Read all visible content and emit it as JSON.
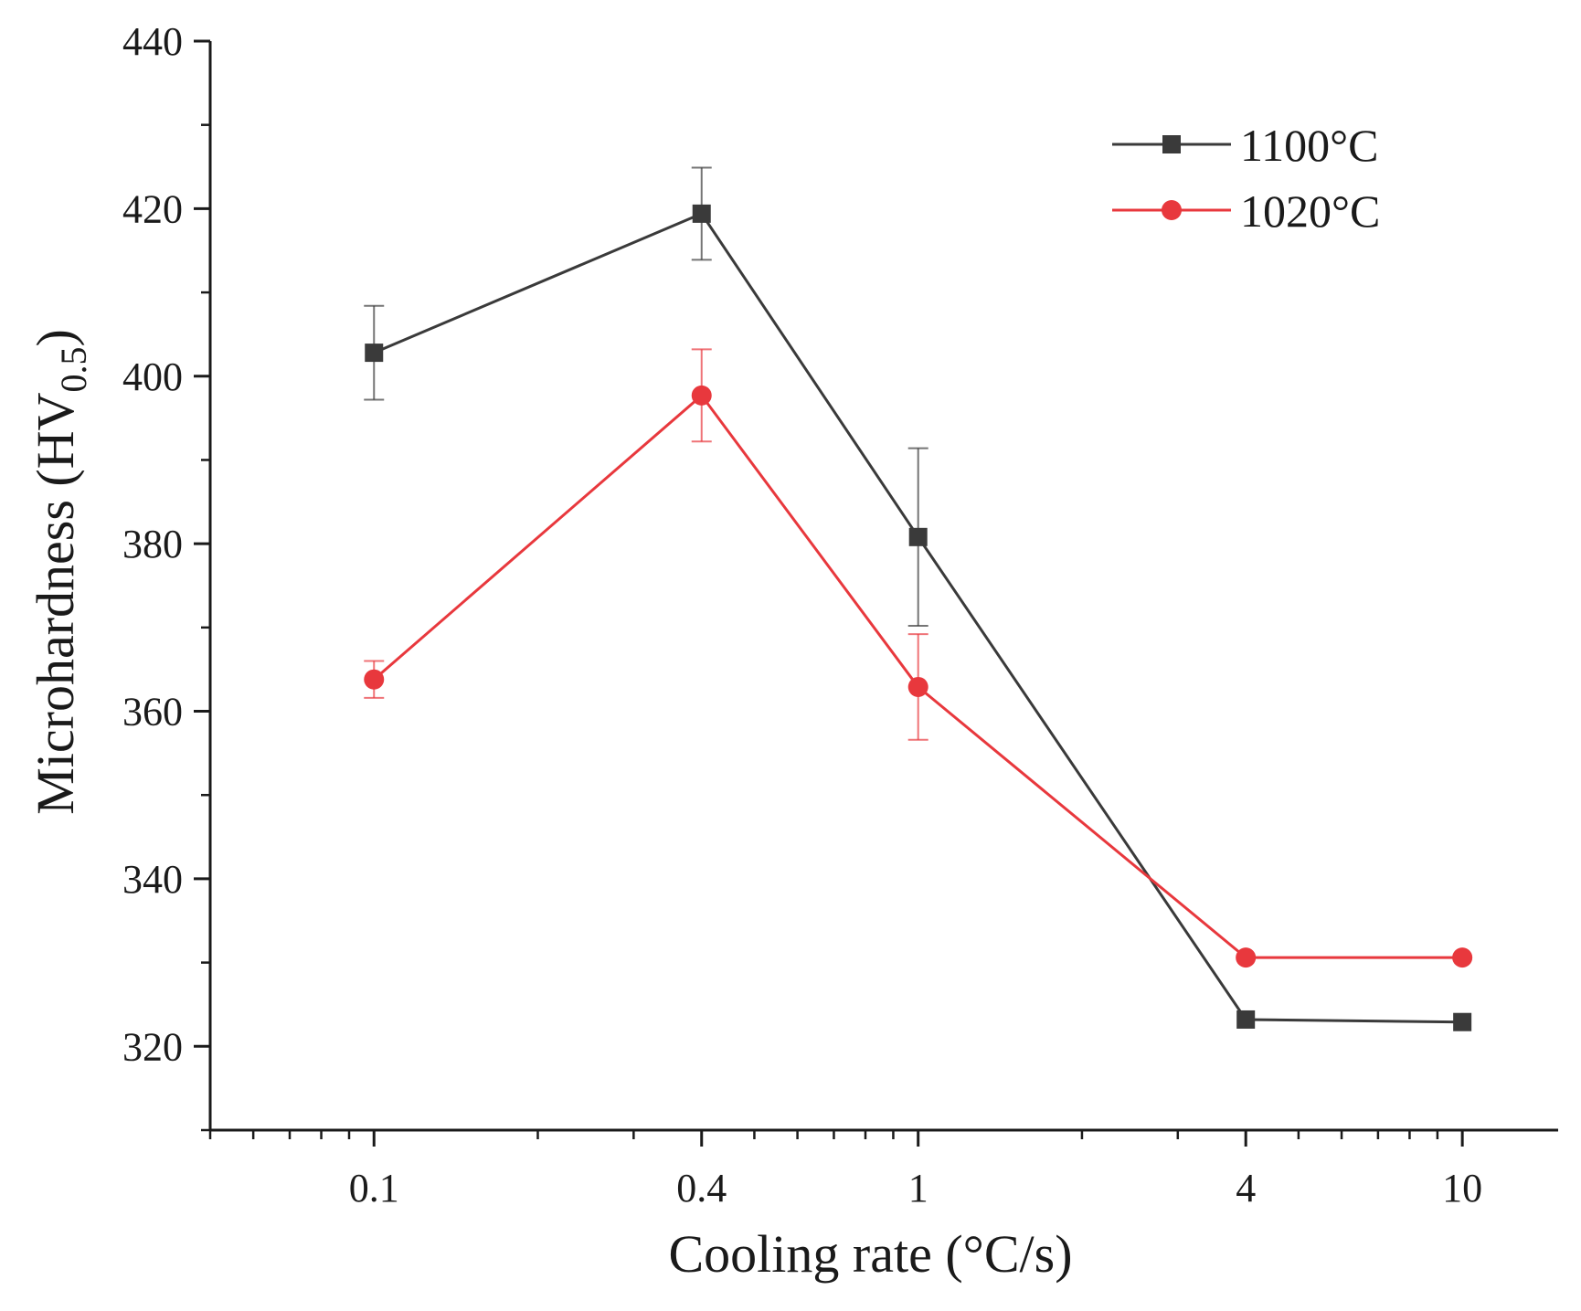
{
  "chart_data": {
    "type": "line",
    "title": "",
    "xlabel": "Cooling rate (°C/s)",
    "ylabel_main": "Microhardness (HV",
    "ylabel_sub": "0.5",
    "ylabel_close": ")",
    "xscale": "log",
    "xlim": [
      0.05,
      15
    ],
    "ylim": [
      310,
      440
    ],
    "x_ticks": [
      0.1,
      0.4,
      1,
      4,
      10
    ],
    "x_tick_labels": [
      "0.1",
      "0.4",
      "1",
      "4",
      "10"
    ],
    "y_ticks": [
      320,
      340,
      360,
      380,
      400,
      420,
      440
    ],
    "y_tick_labels": [
      "320",
      "340",
      "360",
      "380",
      "400",
      "420",
      "440"
    ],
    "legend_position": "top-right",
    "series": [
      {
        "name": "1100°C",
        "marker": "square",
        "color": "#3a3a3a",
        "x": [
          0.1,
          0.4,
          1,
          4,
          10
        ],
        "y": [
          402.8,
          419.4,
          380.8,
          323.2,
          322.9
        ],
        "error": [
          5.6,
          5.5,
          10.6,
          0,
          0
        ]
      },
      {
        "name": "1020°C",
        "marker": "circle",
        "color": "#e8383d",
        "x": [
          0.1,
          0.4,
          1,
          4,
          10
        ],
        "y": [
          363.8,
          397.7,
          362.9,
          330.6,
          330.6
        ],
        "error": [
          2.2,
          5.5,
          6.3,
          0,
          0
        ]
      }
    ]
  }
}
